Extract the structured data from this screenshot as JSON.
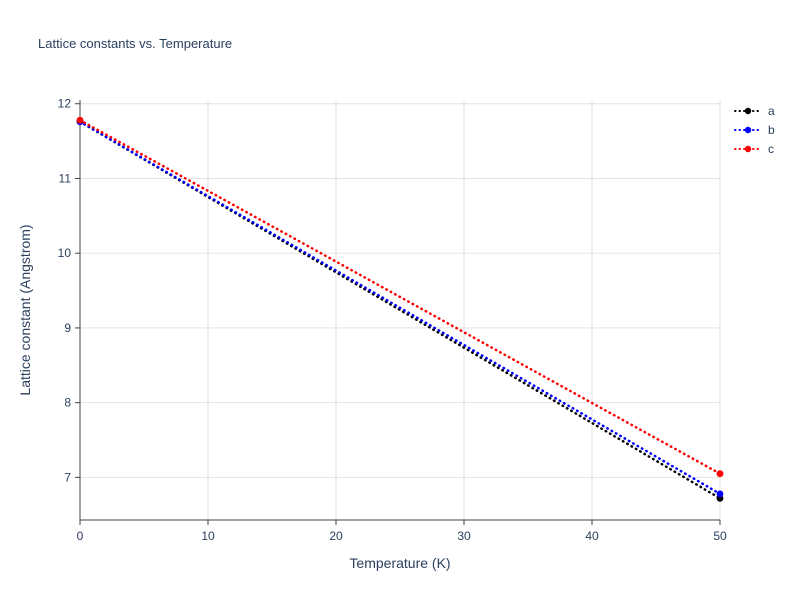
{
  "chart_data": {
    "type": "line",
    "title": "Lattice constants vs. Temperature",
    "xlabel": "Temperature (K)",
    "ylabel": "Lattice constant (Angstrom)",
    "xlim": [
      0,
      50
    ],
    "ylim": [
      6.43,
      12.05
    ],
    "x_ticks": [
      0,
      10,
      20,
      30,
      40,
      50
    ],
    "y_ticks": [
      7,
      8,
      9,
      10,
      11,
      12
    ],
    "grid": true,
    "legend_position": "top-right-outside",
    "series": [
      {
        "name": "a",
        "color": "#000000",
        "line_style": "dotted",
        "x": [
          0,
          50
        ],
        "y": [
          11.76,
          6.72
        ]
      },
      {
        "name": "b",
        "color": "#0000ff",
        "line_style": "dotted",
        "x": [
          0,
          50
        ],
        "y": [
          11.76,
          6.78
        ]
      },
      {
        "name": "c",
        "color": "#ff0000",
        "line_style": "dotted",
        "x": [
          0,
          50
        ],
        "y": [
          11.78,
          7.05
        ]
      }
    ],
    "colors": {
      "title_text": "#2a3f5f",
      "axis_text": "#2a3f5f",
      "grid": "#e3e3e3",
      "axis_line": "#444444",
      "background": "#ffffff"
    }
  }
}
